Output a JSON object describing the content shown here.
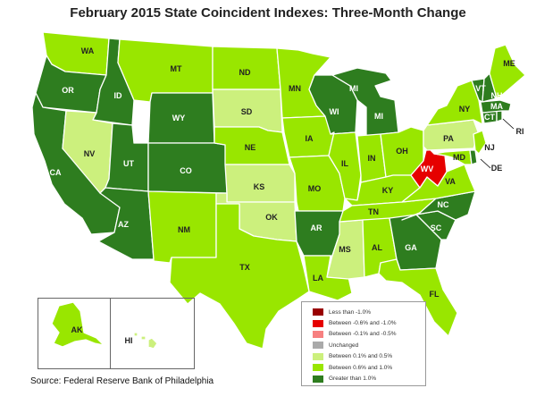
{
  "title": "February 2015 State Coincident Indexes: Three-Month Change",
  "source": "Source: Federal Reserve Bank of Philadelphia",
  "colors": {
    "less_than_neg1": "#990000",
    "neg06_to_neg1": "#e60000",
    "neg01_to_neg05": "#f78080",
    "unchanged": "#aaaaaa",
    "pos01_to_05": "#ccf07d",
    "pos06_to_1": "#99e600",
    "greater_than_1": "#2e7d1f"
  },
  "legend": [
    {
      "label": "Less than -1.0%",
      "color": "#990000"
    },
    {
      "label": "Between -0.6% and -1.0%",
      "color": "#e60000"
    },
    {
      "label": "Between -0.1% and -0.5%",
      "color": "#f78080"
    },
    {
      "label": "Unchanged",
      "color": "#aaaaaa"
    },
    {
      "label": "Between 0.1% and 0.5%",
      "color": "#ccf07d"
    },
    {
      "label": "Between 0.6% and 1.0%",
      "color": "#99e600"
    },
    {
      "label": "Greater than 1.0%",
      "color": "#2e7d1f"
    }
  ],
  "states": {
    "WA": {
      "label": "WA",
      "category": "pos06_to_1"
    },
    "OR": {
      "label": "OR",
      "category": "greater_than_1"
    },
    "CA": {
      "label": "CA",
      "category": "greater_than_1"
    },
    "ID": {
      "label": "ID",
      "category": "greater_than_1"
    },
    "NV": {
      "label": "NV",
      "category": "pos01_to_05"
    },
    "MT": {
      "label": "MT",
      "category": "pos06_to_1"
    },
    "WY": {
      "label": "WY",
      "category": "greater_than_1"
    },
    "UT": {
      "label": "UT",
      "category": "greater_than_1"
    },
    "AZ": {
      "label": "AZ",
      "category": "greater_than_1"
    },
    "CO": {
      "label": "CO",
      "category": "greater_than_1"
    },
    "NM": {
      "label": "NM",
      "category": "pos06_to_1"
    },
    "ND": {
      "label": "ND",
      "category": "pos06_to_1"
    },
    "SD": {
      "label": "SD",
      "category": "pos01_to_05"
    },
    "NE": {
      "label": "NE",
      "category": "pos06_to_1"
    },
    "KS": {
      "label": "KS",
      "category": "pos01_to_05"
    },
    "OK": {
      "label": "OK",
      "category": "pos01_to_05"
    },
    "TX": {
      "label": "TX",
      "category": "pos06_to_1"
    },
    "MN": {
      "label": "MN",
      "category": "pos06_to_1"
    },
    "IA": {
      "label": "IA",
      "category": "pos06_to_1"
    },
    "MO": {
      "label": "MO",
      "category": "pos06_to_1"
    },
    "AR": {
      "label": "AR",
      "category": "greater_than_1"
    },
    "LA": {
      "label": "LA",
      "category": "pos06_to_1"
    },
    "WI": {
      "label": "WI",
      "category": "greater_than_1"
    },
    "IL": {
      "label": "IL",
      "category": "pos06_to_1"
    },
    "MS": {
      "label": "MS",
      "category": "pos01_to_05"
    },
    "MI": {
      "label": "MI",
      "category": "greater_than_1"
    },
    "IN": {
      "label": "IN",
      "category": "pos06_to_1"
    },
    "OH": {
      "label": "OH",
      "category": "pos06_to_1"
    },
    "KY": {
      "label": "KY",
      "category": "pos06_to_1"
    },
    "TN": {
      "label": "TN",
      "category": "pos06_to_1"
    },
    "AL": {
      "label": "AL",
      "category": "pos06_to_1"
    },
    "GA": {
      "label": "GA",
      "category": "greater_than_1"
    },
    "FL": {
      "label": "FL",
      "category": "pos06_to_1"
    },
    "SC": {
      "label": "SC",
      "category": "greater_than_1"
    },
    "NC": {
      "label": "NC",
      "category": "greater_than_1"
    },
    "VA": {
      "label": "VA",
      "category": "pos06_to_1"
    },
    "WV": {
      "label": "WV",
      "category": "neg06_to_neg1"
    },
    "PA": {
      "label": "PA",
      "category": "pos01_to_05"
    },
    "NY": {
      "label": "NY",
      "category": "pos06_to_1"
    },
    "MD": {
      "label": "MD",
      "category": "pos06_to_1"
    },
    "DE": {
      "label": "DE",
      "category": "greater_than_1"
    },
    "NJ": {
      "label": "NJ",
      "category": "pos06_to_1"
    },
    "CT": {
      "label": "CT",
      "category": "greater_than_1"
    },
    "RI": {
      "label": "RI",
      "category": "greater_than_1"
    },
    "MA": {
      "label": "MA",
      "category": "greater_than_1"
    },
    "VT": {
      "label": "VT",
      "category": "greater_than_1"
    },
    "NH": {
      "label": "NH",
      "category": "greater_than_1"
    },
    "ME": {
      "label": "ME",
      "category": "pos06_to_1"
    },
    "AK": {
      "label": "AK",
      "category": "pos06_to_1"
    },
    "HI": {
      "label": "HI",
      "category": "pos01_to_05"
    }
  }
}
